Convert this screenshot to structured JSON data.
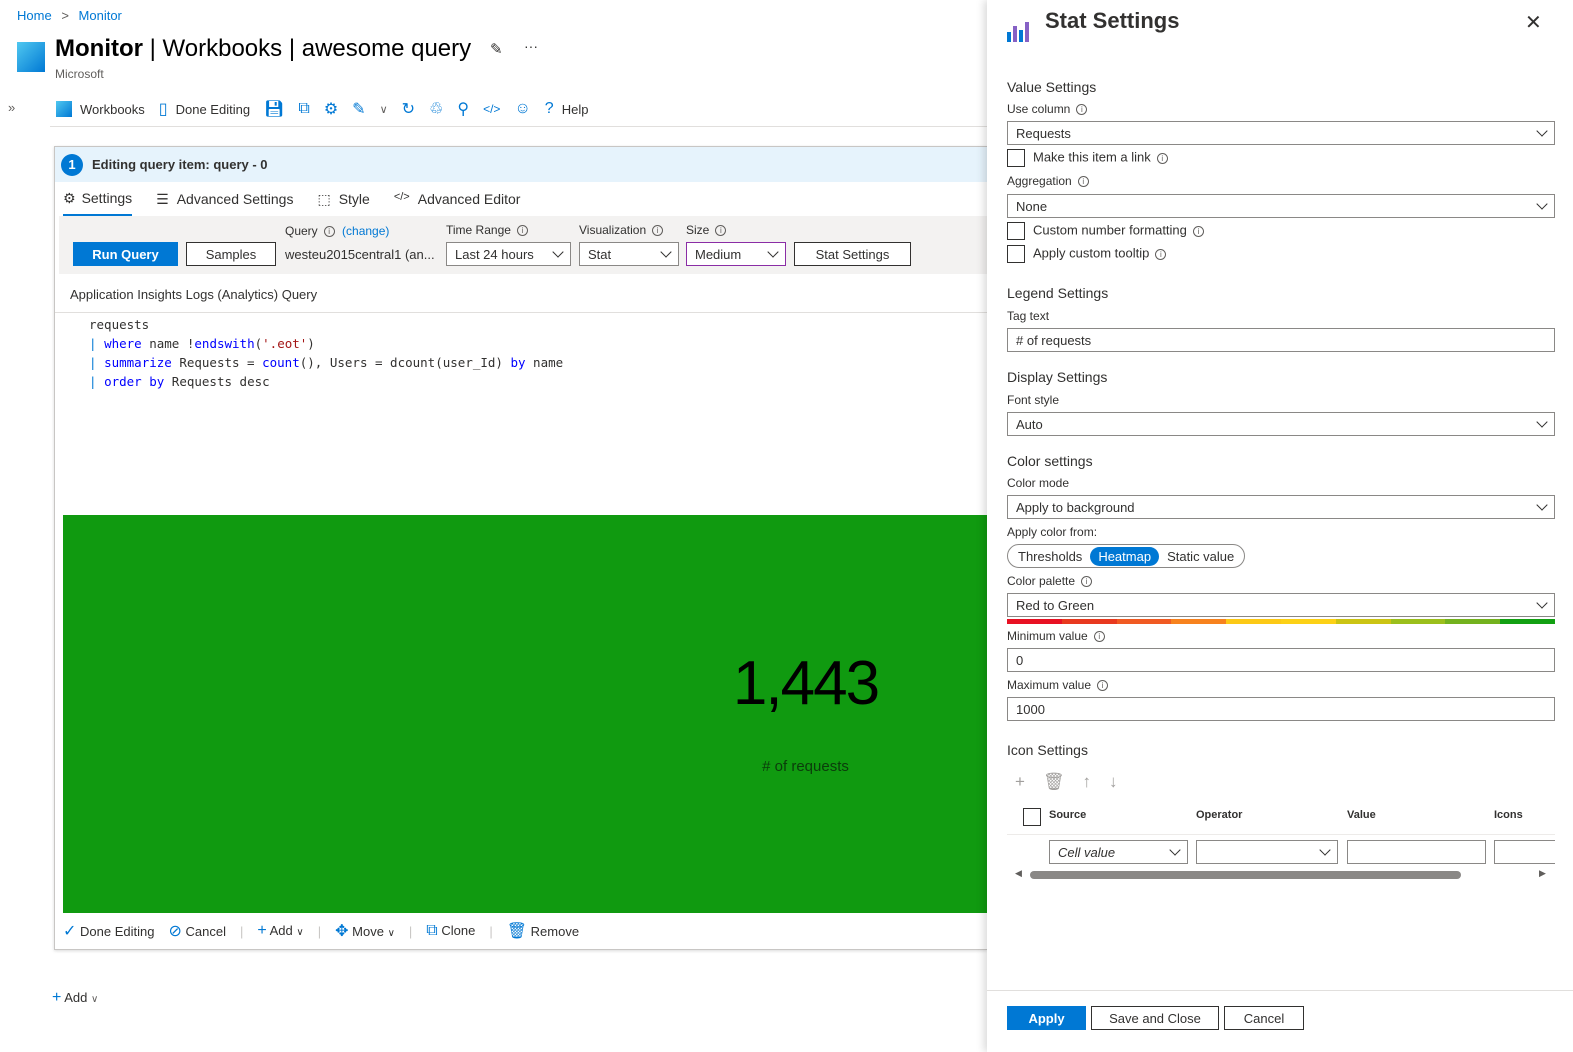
{
  "breadcrumb": [
    {
      "label": "Home"
    },
    {
      "label": "Monitor"
    }
  ],
  "header": {
    "title_bold": "Monitor",
    "title_rest": " | Workbooks | awesome query",
    "subtitle": "Microsoft",
    "more": "···"
  },
  "toolbar": {
    "workbooks": "Workbooks",
    "done_editing": "Done Editing",
    "help": "Help"
  },
  "editor": {
    "step": "1",
    "title": "Editing query item: query - 0",
    "tabs": [
      {
        "label": "Settings",
        "icon": "gear-icon",
        "active": true
      },
      {
        "label": "Advanced Settings",
        "icon": "sliders-icon"
      },
      {
        "label": "Style",
        "icon": "style-icon"
      },
      {
        "label": "Advanced Editor",
        "icon": "code-icon"
      }
    ],
    "run_query": "Run Query",
    "samples": "Samples",
    "query_label": "Query",
    "change": "(change)",
    "resource": "westeu2015central1 (an...",
    "time_range_label": "Time Range",
    "time_range": "Last 24 hours",
    "visualization_label": "Visualization",
    "visualization": "Stat",
    "size_label": "Size",
    "size": "Medium",
    "stat_settings": "Stat Settings",
    "query_type": "Application Insights Logs (Analytics) Query",
    "code": [
      "requests",
      "| where name !endswith('.eot')",
      "| summarize Requests = count(), Users = dcount(user_Id) by name",
      "| order by Requests desc"
    ]
  },
  "stat": {
    "value": "1,443",
    "tag": "# of requests",
    "background": "#109a10"
  },
  "footer": {
    "done": "Done Editing",
    "cancel": "Cancel",
    "add": "Add",
    "move": "Move",
    "clone": "Clone",
    "remove": "Remove"
  },
  "page_add": "Add",
  "panel": {
    "title": "Stat Settings",
    "value_settings": "Value Settings",
    "use_column_label": "Use column",
    "use_column": "Requests",
    "make_link": "Make this item a link",
    "aggregation_label": "Aggregation",
    "aggregation": "None",
    "custom_format": "Custom number formatting",
    "custom_tooltip": "Apply custom tooltip",
    "legend_settings": "Legend Settings",
    "tag_text_label": "Tag text",
    "tag_text": "# of requests",
    "display_settings": "Display Settings",
    "font_style_label": "Font style",
    "font_style": "Auto",
    "color_settings": "Color settings",
    "color_mode_label": "Color mode",
    "color_mode": "Apply to background",
    "apply_from_label": "Apply color from:",
    "apply_from": [
      {
        "label": "Thresholds"
      },
      {
        "label": "Heatmap",
        "active": true
      },
      {
        "label": "Static value"
      }
    ],
    "palette_label": "Color palette",
    "palette": "Red to Green",
    "palette_colors": [
      "#e81123",
      "#e8391f",
      "#f05a23",
      "#f7821e",
      "#fcc916",
      "#fcd116",
      "#cbc414",
      "#9bbf1c",
      "#73b21e",
      "#12a012"
    ],
    "min_label": "Minimum value",
    "min": "0",
    "max_label": "Maximum value",
    "max": "1000",
    "icon_settings": "Icon Settings",
    "columns": [
      "Source",
      "Operator",
      "Value",
      "Icons"
    ],
    "row_source": "Cell value",
    "apply": "Apply",
    "save_close": "Save and Close",
    "cancel": "Cancel"
  }
}
